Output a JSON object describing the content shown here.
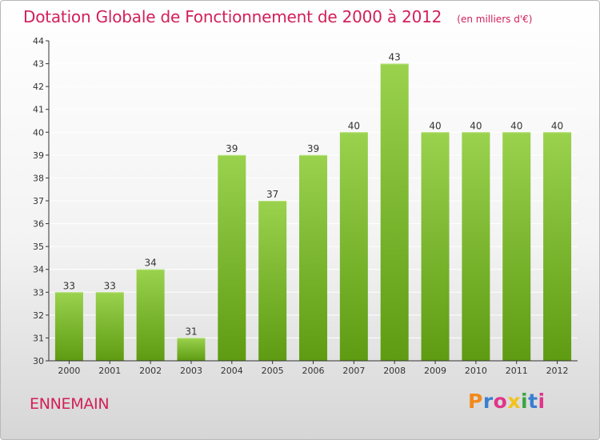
{
  "header": {
    "title": "Dotation Globale de Fonctionnement de 2000 à 2012",
    "subtitle": "(en milliers d'€)"
  },
  "footer": {
    "commune": "ENNEMAIN",
    "brand": "Proxiti",
    "brand_colors": [
      "#f28a1a",
      "#3a7fd0",
      "#e0348a",
      "#f2c21a",
      "#3aa641",
      "#3a7fd0",
      "#e0348a"
    ]
  },
  "colors": {
    "accent": "#d2205a",
    "bar_top": "#9ad24e",
    "bar_bottom": "#5e9b12",
    "axis": "#333333",
    "grid": "#ffffff"
  },
  "chart_data": {
    "type": "bar",
    "title": "Dotation Globale de Fonctionnement de 2000 à 2012",
    "xlabel": "",
    "ylabel": "",
    "ylim": [
      30,
      44
    ],
    "yticks": [
      30,
      31,
      32,
      33,
      34,
      35,
      36,
      37,
      38,
      39,
      40,
      41,
      42,
      43,
      44
    ],
    "grid": true,
    "categories": [
      "2000",
      "2001",
      "2002",
      "2003",
      "2004",
      "2005",
      "2006",
      "2007",
      "2008",
      "2009",
      "2010",
      "2011",
      "2012"
    ],
    "values": [
      33,
      33,
      34,
      31,
      39,
      37,
      39,
      40,
      43,
      40,
      40,
      40,
      40
    ]
  }
}
